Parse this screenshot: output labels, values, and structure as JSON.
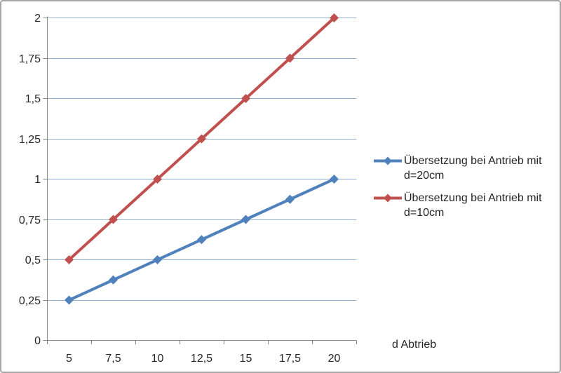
{
  "chart_data": {
    "type": "line",
    "title": "",
    "categories": [
      "5",
      "7,5",
      "10",
      "12,5",
      "15",
      "17,5",
      "20"
    ],
    "x_values": [
      5,
      7.5,
      10,
      12.5,
      15,
      17.5,
      20
    ],
    "series": [
      {
        "name": "Übersetzung bei Antrieb mit d=20cm",
        "color": "#4F81BD",
        "marker": "diamond",
        "values": [
          0.25,
          0.375,
          0.5,
          0.625,
          0.75,
          0.875,
          1
        ]
      },
      {
        "name": "Übersetzung bei Antrieb mit d=10cm",
        "color": "#C0504D",
        "marker": "diamond",
        "values": [
          0.5,
          0.75,
          1,
          1.25,
          1.5,
          1.75,
          2
        ]
      }
    ],
    "xlabel": "d Abtrieb",
    "ylabel": "",
    "ylim": [
      0,
      2
    ],
    "y_tick_values": [
      0,
      0.25,
      0.5,
      0.75,
      1,
      1.25,
      1.5,
      1.75,
      2
    ],
    "y_ticks": [
      "0",
      "0,25",
      "0,5",
      "0,75",
      "1",
      "1,25",
      "1,5",
      "1,75",
      "2"
    ],
    "grid": true,
    "legend_position": "right",
    "colors": {
      "gridline": "#95B3D7",
      "axis": "#868686",
      "text": "#262626",
      "background": "#FFFFFF",
      "frame_border": "#A6A6A6"
    }
  }
}
